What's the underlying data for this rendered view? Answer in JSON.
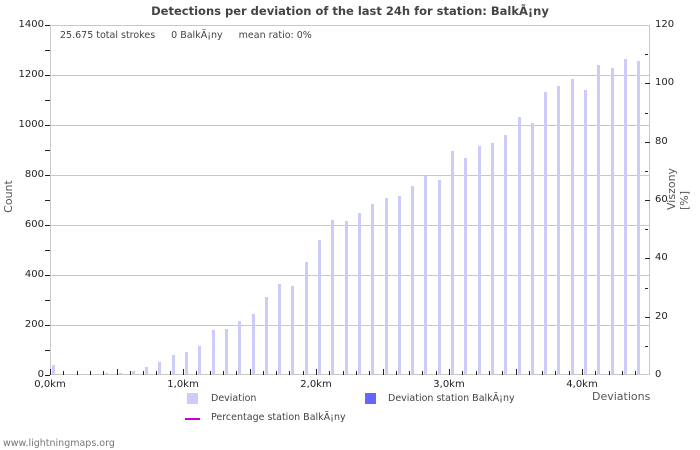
{
  "header": {
    "title": "Detections per deviation of the last 24h for station: BalkÃ¡ny",
    "stats": {
      "total_strokes": "25.675 total strokes",
      "station_strokes": "0 BalkÃ¡ny",
      "mean_ratio": "mean ratio: 0%"
    }
  },
  "axes": {
    "left_title": "Count",
    "right_title": "Viszony [%]",
    "x_title": "Deviations",
    "left_ticks": [
      "0",
      "200",
      "400",
      "600",
      "800",
      "1000",
      "1200",
      "1400"
    ],
    "right_ticks": [
      "0",
      "20",
      "40",
      "60",
      "80",
      "100",
      "120"
    ],
    "x_ticks": [
      "0,0km",
      "1,0km",
      "2,0km",
      "3,0km",
      "4,0km"
    ]
  },
  "legend": {
    "deviation": "Deviation",
    "deviation_station": "Deviation station BalkÃ¡ny",
    "percentage_station": "Percentage station BalkÃ¡ny"
  },
  "colors": {
    "deviation": "#ccccf8",
    "deviation_station": "#6666ff",
    "percentage_station": "#cc00cc",
    "grid": "#c8c8c8"
  },
  "footer": {
    "credit": "www.lightningmaps.org"
  },
  "chart_data": {
    "type": "bar",
    "title": "Detections per deviation of the last 24h for station: BalkÃ¡ny",
    "xlabel": "Deviations",
    "ylabel": "Count",
    "y2label": "Viszony [%]",
    "ylim": [
      0,
      1400
    ],
    "y2lim": [
      0,
      120
    ],
    "grid": true,
    "legend_position": "bottom",
    "x_unit": "km",
    "bin_width_km": 0.1,
    "x": [
      0.0,
      0.1,
      0.2,
      0.3,
      0.4,
      0.5,
      0.6,
      0.7,
      0.8,
      0.9,
      1.0,
      1.1,
      1.2,
      1.3,
      1.4,
      1.5,
      1.6,
      1.7,
      1.8,
      1.9,
      2.0,
      2.1,
      2.2,
      2.3,
      2.4,
      2.5,
      2.6,
      2.7,
      2.8,
      2.9,
      3.0,
      3.1,
      3.2,
      3.3,
      3.4,
      3.5,
      3.6,
      3.7,
      3.8,
      3.9,
      4.0,
      4.1,
      4.2,
      4.3,
      4.4
    ],
    "series": [
      {
        "name": "Deviation",
        "axis": "left",
        "type": "bar",
        "values": [
          36,
          0,
          0,
          0,
          4,
          4,
          12,
          28,
          49,
          77,
          89,
          113,
          177,
          181,
          213,
          241,
          308,
          360,
          352,
          449,
          536,
          616,
          612,
          644,
          680,
          704,
          712,
          752,
          792,
          776,
          892,
          864,
          912,
          924,
          956,
          1028,
          1004,
          1128,
          1152,
          1180,
          1136,
          1236,
          1224,
          1260,
          1252
        ]
      },
      {
        "name": "Deviation station BalkÃ¡ny",
        "axis": "left",
        "type": "bar",
        "values": [
          0,
          0,
          0,
          0,
          0,
          0,
          0,
          0,
          0,
          0,
          0,
          0,
          0,
          0,
          0,
          0,
          0,
          0,
          0,
          0,
          0,
          0,
          0,
          0,
          0,
          0,
          0,
          0,
          0,
          0,
          0,
          0,
          0,
          0,
          0,
          0,
          0,
          0,
          0,
          0,
          0,
          0,
          0,
          0,
          0
        ]
      },
      {
        "name": "Percentage station BalkÃ¡ny",
        "axis": "right",
        "type": "line",
        "values": [
          0,
          0,
          0,
          0,
          0,
          0,
          0,
          0,
          0,
          0,
          0,
          0,
          0,
          0,
          0,
          0,
          0,
          0,
          0,
          0,
          0,
          0,
          0,
          0,
          0,
          0,
          0,
          0,
          0,
          0,
          0,
          0,
          0,
          0,
          0,
          0,
          0,
          0,
          0,
          0,
          0,
          0,
          0,
          0,
          0
        ]
      }
    ]
  }
}
